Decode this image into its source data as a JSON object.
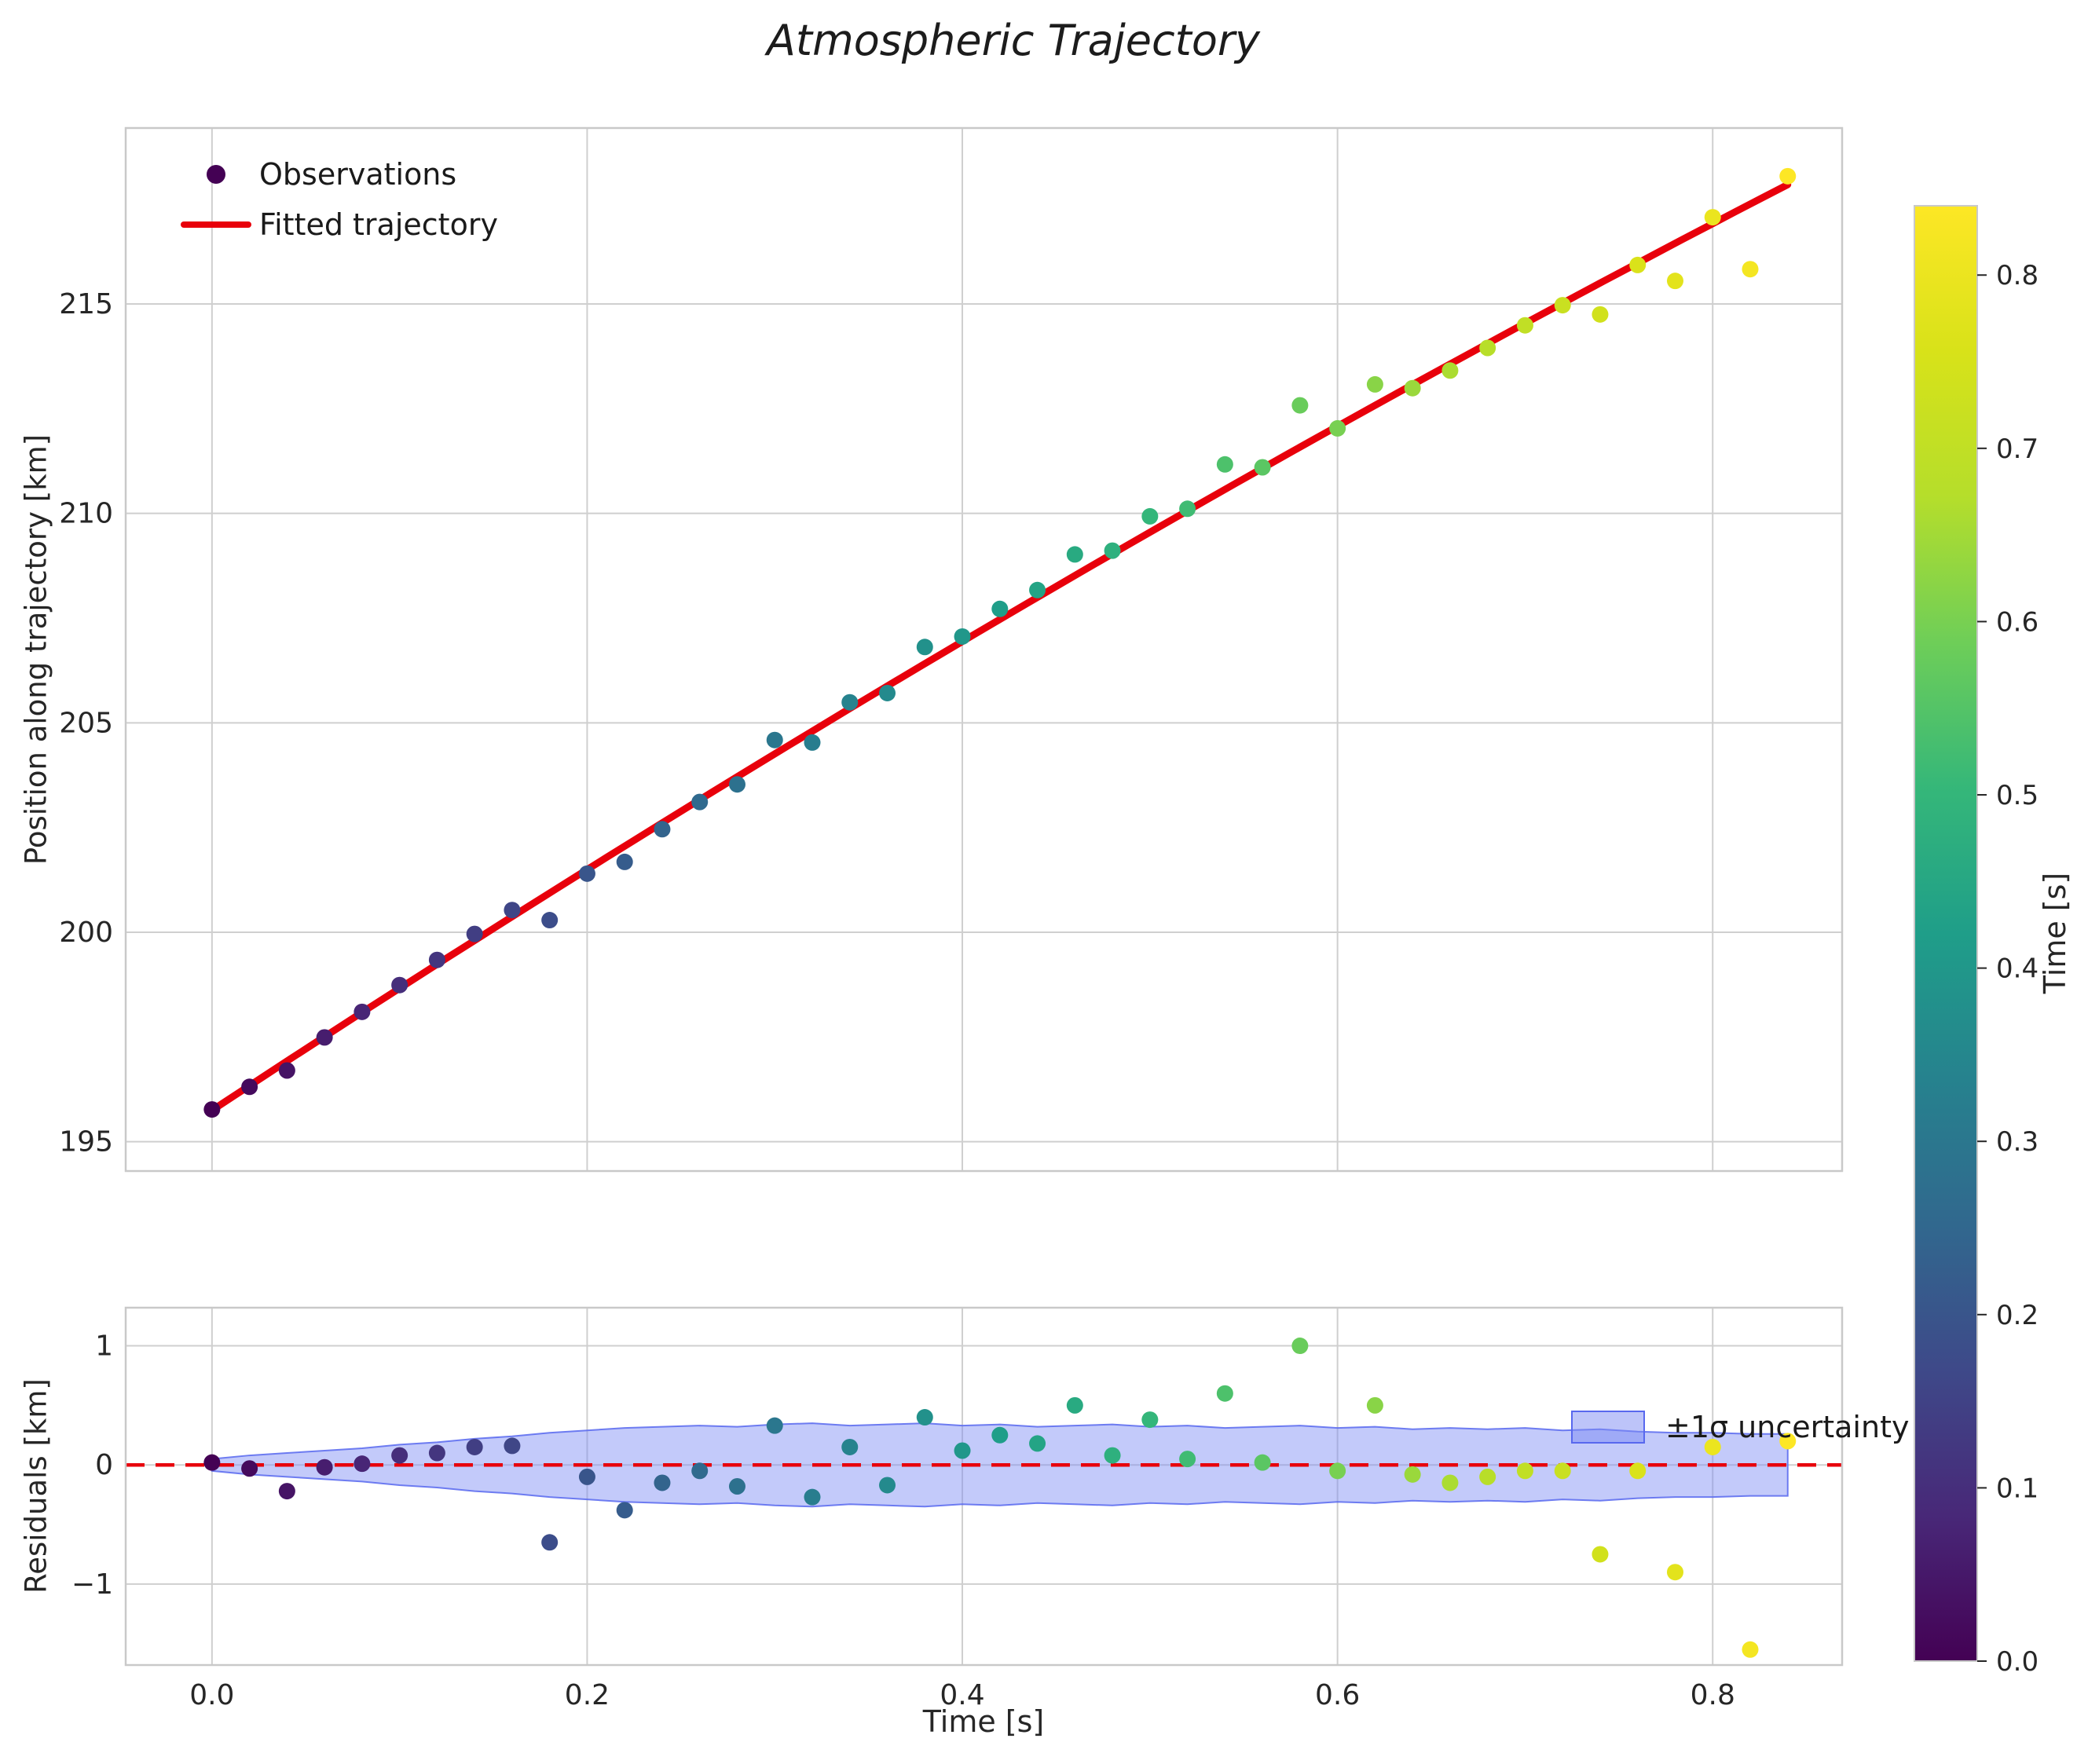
{
  "title": "Atmospheric Trajectory",
  "colors": {
    "red": "#e8000b",
    "grid": "#cfcfcf",
    "frame": "#c9c9c9",
    "text": "#262626",
    "band_fill": "#7b89f4",
    "band_edge": "#5868ee",
    "obs_legend_dot": "#440154",
    "viridis": [
      [
        0,
        "#440154"
      ],
      [
        0.1,
        "#482878"
      ],
      [
        0.2,
        "#3e4989"
      ],
      [
        0.3,
        "#31688e"
      ],
      [
        0.4,
        "#26828e"
      ],
      [
        0.5,
        "#1f9e89"
      ],
      [
        0.6,
        "#35b779"
      ],
      [
        0.7,
        "#6ece58"
      ],
      [
        0.8,
        "#b5de2b"
      ],
      [
        0.9,
        "#d8e219"
      ],
      [
        1,
        "#fde725"
      ]
    ]
  },
  "chart_data": {
    "type": "scatter",
    "title": "Atmospheric Trajectory",
    "xlabel": "Time [s]",
    "ylabel_top": "Position along trajectory [km]",
    "ylabel_bottom": "Residuals [km]",
    "colorbar_label": "Time [s]",
    "legend_top": {
      "observations": "Observations",
      "fitted": "Fitted trajectory"
    },
    "legend_bottom": {
      "uncertainty": "±1σ uncertainty"
    },
    "grid": true,
    "legend_position_top": "upper left",
    "legend_position_bottom": "upper right",
    "x": [
      0.0,
      0.02,
      0.04,
      0.06,
      0.08,
      0.1,
      0.12,
      0.14,
      0.16,
      0.18,
      0.2,
      0.22,
      0.24,
      0.26,
      0.28,
      0.3,
      0.32,
      0.34,
      0.36,
      0.38,
      0.4,
      0.42,
      0.44,
      0.46,
      0.48,
      0.5,
      0.52,
      0.54,
      0.56,
      0.58,
      0.6,
      0.62,
      0.64,
      0.66,
      0.68,
      0.7,
      0.72,
      0.74,
      0.76,
      0.78,
      0.8,
      0.82,
      0.84
    ],
    "position": [
      195.77,
      196.31,
      196.7,
      197.49,
      198.1,
      198.74,
      199.34,
      199.96,
      200.53,
      200.29,
      201.4,
      201.68,
      202.46,
      203.11,
      203.53,
      204.59,
      204.53,
      205.49,
      205.71,
      206.81,
      207.06,
      207.72,
      208.17,
      209.02,
      209.11,
      209.93,
      210.11,
      211.17,
      211.1,
      212.58,
      212.03,
      213.08,
      212.99,
      213.41,
      213.95,
      214.49,
      214.97,
      214.75,
      215.93,
      215.55,
      217.07,
      215.83,
      218.05
    ],
    "residuals": [
      0.02,
      -0.03,
      -0.22,
      -0.02,
      0.01,
      0.08,
      0.1,
      0.15,
      0.16,
      -0.65,
      -0.1,
      -0.38,
      -0.15,
      -0.05,
      -0.18,
      0.33,
      -0.27,
      0.15,
      -0.17,
      0.4,
      0.12,
      0.25,
      0.18,
      0.5,
      0.08,
      0.38,
      0.05,
      0.6,
      0.02,
      1.0,
      -0.05,
      0.5,
      -0.08,
      -0.15,
      -0.1,
      -0.05,
      -0.05,
      -0.75,
      -0.05,
      -0.9,
      0.15,
      -1.55,
      0.2
    ],
    "sigma": [
      0.05,
      0.08,
      0.1,
      0.12,
      0.14,
      0.17,
      0.19,
      0.22,
      0.24,
      0.27,
      0.29,
      0.31,
      0.32,
      0.33,
      0.32,
      0.34,
      0.35,
      0.33,
      0.34,
      0.35,
      0.33,
      0.34,
      0.32,
      0.33,
      0.34,
      0.32,
      0.33,
      0.31,
      0.32,
      0.33,
      0.31,
      0.32,
      0.3,
      0.31,
      0.3,
      0.31,
      0.29,
      0.3,
      0.28,
      0.27,
      0.27,
      0.26,
      0.26
    ],
    "fit": {
      "intercept": 195.75,
      "slope": 29.5,
      "quad": -3.8,
      "t_min": 0.0,
      "t_max": 0.84
    },
    "xlim": [
      -0.046,
      0.869
    ],
    "ylim_top": [
      194.3,
      219.2
    ],
    "ylim_bottom": [
      -1.68,
      1.32
    ],
    "xticks": [
      0.0,
      0.2,
      0.4,
      0.6,
      0.8
    ],
    "xtick_labels": [
      "0.0",
      "0.2",
      "0.4",
      "0.6",
      "0.8"
    ],
    "yticks_top": [
      195,
      200,
      205,
      210,
      215
    ],
    "ytick_labels_top": [
      "195",
      "200",
      "205",
      "210",
      "215"
    ],
    "yticks_bottom": [
      -1,
      0,
      1
    ],
    "ytick_labels_bottom": [
      "−1",
      "0",
      "1"
    ],
    "colorbar": {
      "vmin": 0.0,
      "vmax": 0.84,
      "ticks": [
        0.0,
        0.1,
        0.2,
        0.3,
        0.4,
        0.5,
        0.6,
        0.7,
        0.8
      ],
      "tick_labels": [
        "0.0",
        "0.1",
        "0.2",
        "0.3",
        "0.4",
        "0.5",
        "0.6",
        "0.7",
        "0.8"
      ]
    }
  }
}
